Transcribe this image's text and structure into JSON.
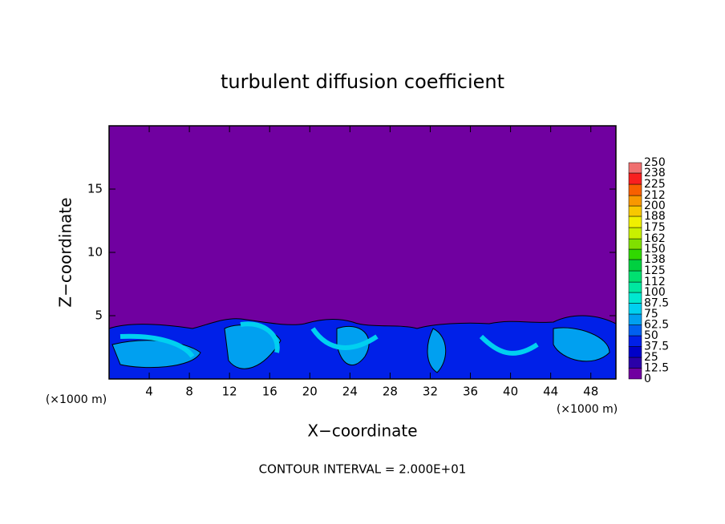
{
  "chart_data": {
    "type": "contour",
    "title": "turbulent diffusion coefficient",
    "x_label": "X−coordinate",
    "y_label": "Z−coordinate",
    "x_unit": "(×1000 m)",
    "y_unit": "(×1000 m)",
    "annotation": "CONTOUR INTERVAL = 2.000E+01",
    "xlim": [
      0,
      50.5
    ],
    "xticks": [
      4,
      8,
      12,
      16,
      20,
      24,
      28,
      32,
      36,
      40,
      44,
      48
    ],
    "ylim": [
      0,
      20
    ],
    "yticks": [
      5,
      10,
      15
    ],
    "colorbar": {
      "levels": [
        0,
        12.5,
        25,
        37.5,
        50,
        62.5,
        75,
        87.5,
        100,
        112,
        125,
        138,
        150,
        162,
        175,
        188,
        200,
        212,
        225,
        238,
        250
      ],
      "colors": [
        "#7000a0",
        "#2a00a8",
        "#0000c8",
        "#0020e8",
        "#0060f0",
        "#00a0f0",
        "#00d0f0",
        "#00e8d0",
        "#00e8a0",
        "#00e070",
        "#00d040",
        "#30d800",
        "#80e000",
        "#c8f000",
        "#f0f000",
        "#f8c800",
        "#f89800",
        "#f86000",
        "#f82020",
        "#f07070"
      ]
    }
  }
}
